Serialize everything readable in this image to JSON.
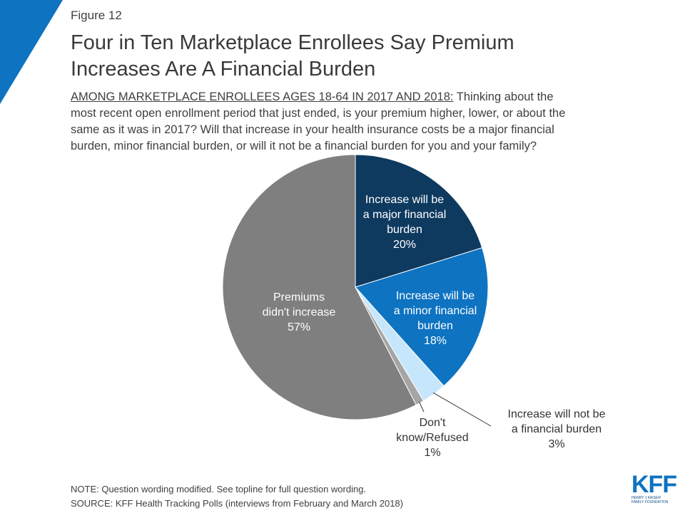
{
  "figure_label": "Figure 12",
  "title_lines": [
    "Four in Ten Marketplace Enrollees Say Premium",
    "Increases Are A Financial Burden"
  ],
  "question": {
    "lead": "AMONG MARKETPLACE ENROLLEES AGES 18-64 IN 2017 AND 2018:",
    "line1_rest": " Thinking about the",
    "line2": "most recent open enrollment period that just ended, is your premium higher, lower, or about the",
    "line3": "same as it was in 2017? Will that increase in your health insurance costs be a major financial",
    "line4": "burden, minor financial burden, or will it not be a financial burden for you and your family?"
  },
  "chart_data": {
    "type": "pie",
    "start_angle_deg": 0,
    "direction": "clockwise",
    "slices": [
      {
        "label_lines": [
          "Increase will be",
          "a major financial",
          "burden",
          "20%"
        ],
        "value": 20,
        "color": "#0f3a5f",
        "label_color": "#ffffff",
        "label_pos": "inside"
      },
      {
        "label_lines": [
          "Increase will be",
          "a minor financial",
          "burden",
          "18%"
        ],
        "value": 18,
        "color": "#0e73c1",
        "label_color": "#ffffff",
        "label_pos": "inside"
      },
      {
        "label_lines": [
          "Increase will not be",
          "a financial burden",
          "3%"
        ],
        "value": 3,
        "color": "#c6e6fb",
        "label_color": "#333333",
        "label_pos": "outside-right"
      },
      {
        "label_lines": [
          "Don't",
          "know/Refused",
          "1%"
        ],
        "value": 1,
        "color": "#a5a5a5",
        "label_color": "#333333",
        "label_pos": "outside-bottom"
      },
      {
        "label_lines": [
          "Premiums",
          "didn't increase",
          "57%"
        ],
        "value": 57,
        "color": "#7f7f7f",
        "label_color": "#ffffff",
        "label_pos": "inside"
      }
    ]
  },
  "notes": {
    "note": "NOTE: Question wording modified. See topline for full question wording.",
    "source": "SOURCE: KFF Health Tracking Polls (interviews from February and March 2018)"
  },
  "logo": {
    "mark": "KFF",
    "sub_line1": "HENRY J KAISER",
    "sub_line2": "FAMILY FOUNDATION"
  },
  "colors": {
    "accent_stripe": "#0e73c1"
  }
}
